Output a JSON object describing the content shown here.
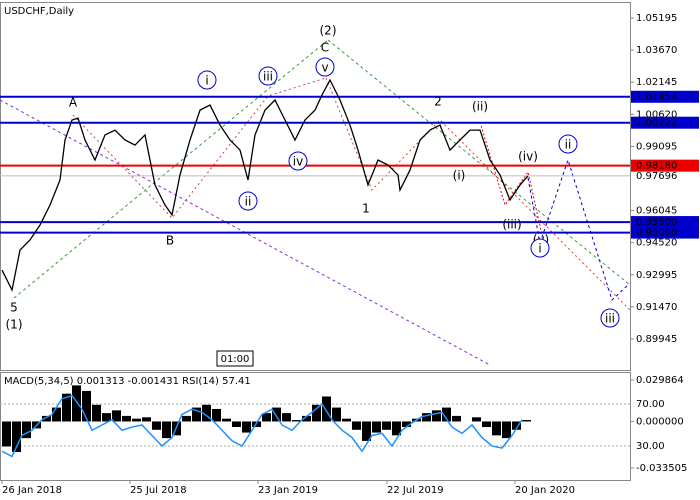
{
  "chart_data": [
    {
      "type": "line",
      "title": "USDCHF,Daily",
      "color": "#000000",
      "x": [
        0,
        10,
        18,
        28,
        38,
        48,
        58,
        63,
        70,
        76,
        83,
        93,
        103,
        113,
        123,
        133,
        143,
        153,
        163,
        170,
        178,
        188,
        198,
        208,
        218,
        228,
        238,
        246,
        253,
        263,
        273,
        283,
        293,
        303,
        313,
        320,
        328,
        338,
        348,
        356,
        366,
        376,
        386,
        396,
        398,
        408,
        418,
        428,
        438,
        448,
        458,
        468,
        478,
        488,
        498,
        508,
        518,
        526
      ],
      "values": [
        0.9322,
        0.9227,
        0.9417,
        0.9465,
        0.9536,
        0.9631,
        0.975,
        0.994,
        1.0035,
        1.0044,
        0.994,
        0.9845,
        0.9964,
        0.9987,
        0.994,
        0.9916,
        0.9964,
        0.9726,
        0.9631,
        0.9584,
        0.9774,
        0.994,
        1.0082,
        1.0106,
        1.0011,
        0.994,
        0.9892,
        0.975,
        0.9964,
        1.0082,
        1.013,
        1.0035,
        0.994,
        1.0035,
        1.0082,
        1.0154,
        1.0225,
        1.013,
        1.0011,
        0.9892,
        0.9726,
        0.9845,
        0.9821,
        0.9774,
        0.9702,
        0.9797,
        0.994,
        0.9987,
        1.0011,
        0.9892,
        0.994,
        0.9987,
        0.9987,
        0.9845,
        0.9774,
        0.9655,
        0.9726,
        0.977
      ],
      "xlim": [
        -2,
        628
      ],
      "xticks": [
        {
          "value": 0,
          "label": "26 Jan 2018"
        },
        {
          "value": 128,
          "label": "25 Jul 2018"
        },
        {
          "value": 256,
          "label": "23 Jan 2019"
        },
        {
          "value": 385,
          "label": "22 Jul 2019"
        },
        {
          "value": 513,
          "label": "20 Jan 2020"
        }
      ],
      "ylim": [
        0.8847,
        1.0591
      ],
      "yticks": [
        1.05195,
        {
          "value": 1.0367,
          "label": "1.03670"
        },
        1.02145,
        {
          "value": 1.0062,
          "label": "1.00620"
        },
        0.99095,
        {
          "value": 0.9757,
          "label": "0.97570"
        },
        0.96045,
        {
          "value": 0.9452,
          "label": "0.94520"
        },
        0.92995,
        {
          "value": 0.9147,
          "label": "0.91470"
        },
        0.89945
      ],
      "levels": [
        {
          "value": 1.01454,
          "label": "1.01454",
          "color": "#0000cc"
        },
        {
          "value": 1.00222,
          "label": "1.00222",
          "color": "#0000cc"
        },
        {
          "value": 0.9818,
          "label": "0.98180",
          "color": "#ee0000"
        },
        {
          "value": 0.955,
          "label": "0.95500",
          "color": "#0000cc"
        },
        {
          "value": 0.95,
          "label": "0.95000",
          "color": "#0000cc"
        }
      ],
      "current_price": {
        "value": 0.97696,
        "label": "0.97696"
      },
      "annotations": [
        "(2)",
        "C",
        "v",
        "iii",
        "i",
        "A",
        "2",
        "(ii)",
        "(iv)",
        "ii",
        "(i)",
        "iv",
        "ii",
        "1",
        "(iii)",
        "B",
        "(v)",
        "i",
        "5",
        "(1)",
        "iii"
      ],
      "time_label": "01:00"
    },
    {
      "type": "bar",
      "title": "MACD(5,34,5) 0.001313 -0.001431 RSI(14) 57.41",
      "x": [
        0,
        10,
        20,
        30,
        40,
        50,
        60,
        70,
        80,
        90,
        100,
        110,
        120,
        130,
        140,
        150,
        160,
        170,
        180,
        190,
        200,
        210,
        220,
        230,
        240,
        250,
        260,
        270,
        280,
        290,
        300,
        310,
        320,
        330,
        340,
        350,
        360,
        370,
        380,
        390,
        400,
        410,
        420,
        430,
        440,
        450,
        460,
        470,
        480,
        490,
        500,
        510,
        520
      ],
      "xlim": [
        -2,
        628
      ],
      "series": [
        {
          "name": "MACD(5,34,5)",
          "color": "#000000",
          "values": [
            -0.018,
            -0.022,
            -0.012,
            -0.005,
            0.004,
            0.01,
            0.02,
            0.026,
            0.022,
            0.012,
            0.006,
            0.008,
            0.004,
            0.002,
            0.003,
            -0.006,
            -0.012,
            -0.01,
            0.004,
            0.01,
            0.012,
            0.009,
            0.002,
            -0.004,
            -0.008,
            -0.004,
            0.006,
            0.01,
            0.006,
            0.001,
            0.004,
            0.012,
            0.018,
            0.01,
            0.002,
            -0.006,
            -0.014,
            -0.008,
            -0.006,
            -0.01,
            -0.004,
            0.002,
            0.006,
            0.008,
            0.01,
            0.004,
            0,
            0.003,
            -0.004,
            -0.01,
            -0.012,
            -0.006,
            0.001
          ]
        },
        {
          "name": "RSI(14)",
          "color": "#1e90ff",
          "axis": "y2",
          "values": [
            25,
            20,
            40,
            45,
            55,
            60,
            75,
            78,
            65,
            45,
            50,
            55,
            45,
            48,
            50,
            40,
            30,
            38,
            60,
            65,
            62,
            55,
            45,
            35,
            30,
            45,
            60,
            65,
            50,
            45,
            55,
            62,
            70,
            55,
            45,
            38,
            25,
            40,
            42,
            30,
            45,
            52,
            58,
            60,
            62,
            48,
            42,
            50,
            38,
            30,
            28,
            40,
            55
          ]
        }
      ],
      "ylim": [
        -0.04215,
        0.0349
      ],
      "yticks": [
        0.029864,
        {
          "value": 0,
          "label": "0.000000"
        },
        -0.033505
      ],
      "y2lim": [
        -2.4,
        99.5
      ],
      "y2ticks": [
        {
          "value": 70,
          "label": "70.00"
        },
        {
          "value": 30,
          "label": "30.00"
        }
      ]
    }
  ]
}
